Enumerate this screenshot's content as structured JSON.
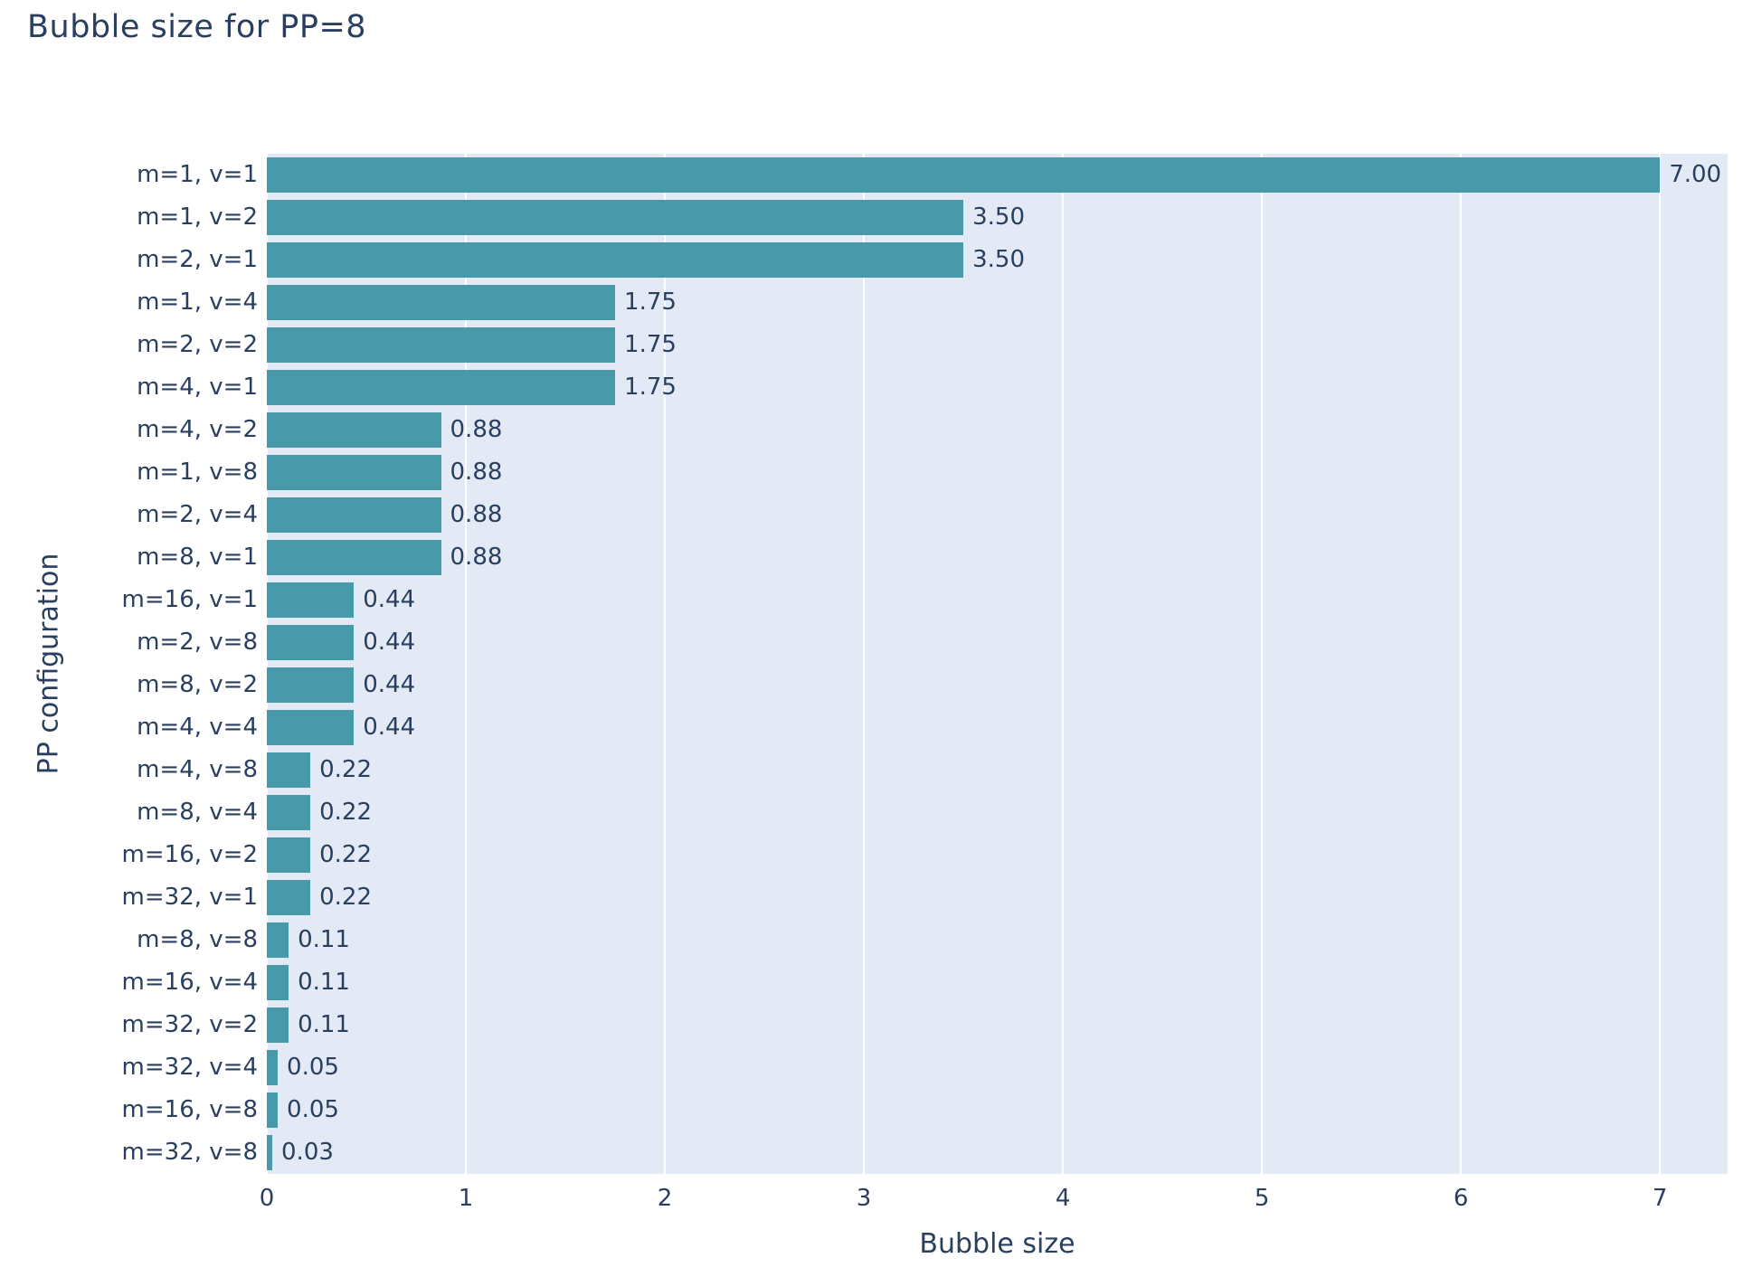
{
  "chart_data": {
    "type": "bar",
    "orientation": "horizontal",
    "title": "Bubble size for PP=8",
    "xlabel": "Bubble size",
    "ylabel": "PP configuration",
    "xlim": [
      0,
      7.34
    ],
    "grid": true,
    "legend": false,
    "x_ticks": {
      "values": [
        0,
        1,
        2,
        3,
        4,
        5,
        6,
        7
      ],
      "labels": [
        "0",
        "1",
        "2",
        "3",
        "4",
        "5",
        "6",
        "7"
      ]
    },
    "bars": [
      {
        "category": "m=1, v=1",
        "value": 7.0,
        "label": "7.00"
      },
      {
        "category": "m=1, v=2",
        "value": 3.5,
        "label": "3.50"
      },
      {
        "category": "m=2, v=1",
        "value": 3.5,
        "label": "3.50"
      },
      {
        "category": "m=1, v=4",
        "value": 1.75,
        "label": "1.75"
      },
      {
        "category": "m=2, v=2",
        "value": 1.75,
        "label": "1.75"
      },
      {
        "category": "m=4, v=1",
        "value": 1.75,
        "label": "1.75"
      },
      {
        "category": "m=4, v=2",
        "value": 0.875,
        "label": "0.88"
      },
      {
        "category": "m=1, v=8",
        "value": 0.875,
        "label": "0.88"
      },
      {
        "category": "m=2, v=4",
        "value": 0.875,
        "label": "0.88"
      },
      {
        "category": "m=8, v=1",
        "value": 0.875,
        "label": "0.88"
      },
      {
        "category": "m=16, v=1",
        "value": 0.4375,
        "label": "0.44"
      },
      {
        "category": "m=2, v=8",
        "value": 0.4375,
        "label": "0.44"
      },
      {
        "category": "m=8, v=2",
        "value": 0.4375,
        "label": "0.44"
      },
      {
        "category": "m=4, v=4",
        "value": 0.4375,
        "label": "0.44"
      },
      {
        "category": "m=4, v=8",
        "value": 0.21875,
        "label": "0.22"
      },
      {
        "category": "m=8, v=4",
        "value": 0.21875,
        "label": "0.22"
      },
      {
        "category": "m=16, v=2",
        "value": 0.21875,
        "label": "0.22"
      },
      {
        "category": "m=32, v=1",
        "value": 0.21875,
        "label": "0.22"
      },
      {
        "category": "m=8, v=8",
        "value": 0.109375,
        "label": "0.11"
      },
      {
        "category": "m=16, v=4",
        "value": 0.109375,
        "label": "0.11"
      },
      {
        "category": "m=32, v=2",
        "value": 0.109375,
        "label": "0.11"
      },
      {
        "category": "m=32, v=4",
        "value": 0.0546875,
        "label": "0.05"
      },
      {
        "category": "m=16, v=8",
        "value": 0.0546875,
        "label": "0.05"
      },
      {
        "category": "m=32, v=8",
        "value": 0.02734375,
        "label": "0.03"
      }
    ],
    "colors": {
      "bar": "#4899aa",
      "plot_background": "#e3eaf5",
      "gridline": "#ffffff",
      "text": "#2a3f5f",
      "figure_background": "#ffffff"
    }
  }
}
